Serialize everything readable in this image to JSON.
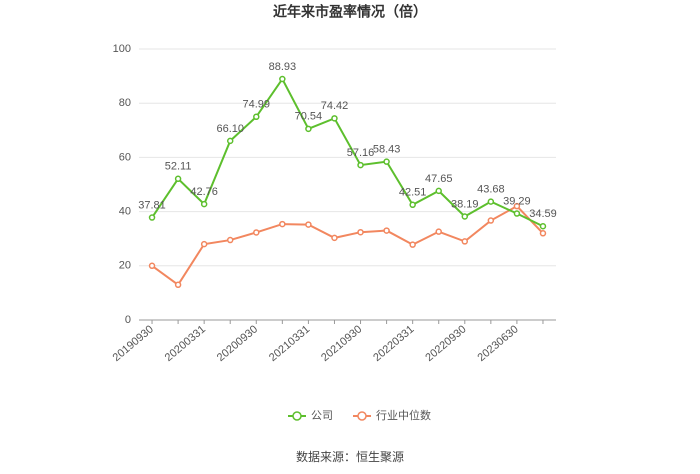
{
  "chart_data": {
    "type": "line",
    "title": "近年来市盈率情况（倍）",
    "categories": [
      "20190930",
      null,
      "20200331",
      null,
      "20200930",
      null,
      "20210331",
      null,
      "20210930",
      null,
      "20220331",
      null,
      "20220930",
      null,
      "20230630",
      null
    ],
    "series": [
      {
        "name": "公司",
        "color": "#5dbf2d",
        "values": [
          37.81,
          52.11,
          42.76,
          66.1,
          74.99,
          88.93,
          70.54,
          74.42,
          57.16,
          58.43,
          42.51,
          47.65,
          38.19,
          43.68,
          39.29,
          34.59
        ],
        "value_labels": [
          "37.81",
          "52.11",
          "42.76",
          "66.10",
          "74.99",
          "88.93",
          "70.54",
          "74.42",
          "57.16",
          "58.43",
          "42.51",
          "47.65",
          "38.19",
          "43.68",
          "39.29",
          "34.59"
        ]
      },
      {
        "name": "行业中位数",
        "color": "#f2875f",
        "values": [
          20,
          13,
          28,
          29.5,
          32.3,
          35.4,
          35.2,
          30.3,
          32.4,
          33,
          27.8,
          32.6,
          29,
          36.7,
          42,
          32
        ]
      }
    ],
    "ylim": [
      0,
      100
    ],
    "yticks": [
      0,
      20,
      40,
      60,
      80,
      100
    ],
    "grid": true,
    "source": "数据来源：恒生聚源"
  }
}
